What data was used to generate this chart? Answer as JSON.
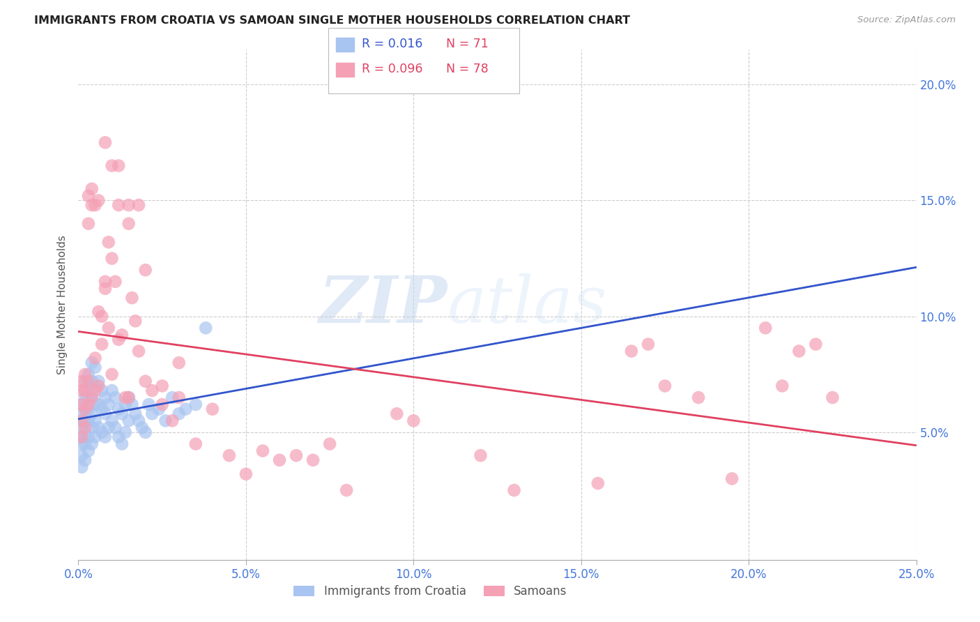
{
  "title": "IMMIGRANTS FROM CROATIA VS SAMOAN SINGLE MOTHER HOUSEHOLDS CORRELATION CHART",
  "source": "Source: ZipAtlas.com",
  "ylabel": "Single Mother Households",
  "xlim": [
    0.0,
    0.25
  ],
  "ylim": [
    -0.005,
    0.215
  ],
  "xtick_labels": [
    "0.0%",
    "5.0%",
    "10.0%",
    "15.0%",
    "20.0%",
    "25.0%"
  ],
  "xtick_values": [
    0.0,
    0.05,
    0.1,
    0.15,
    0.2,
    0.25
  ],
  "ytick_labels": [
    "5.0%",
    "10.0%",
    "15.0%",
    "20.0%"
  ],
  "ytick_values": [
    0.05,
    0.1,
    0.15,
    0.2
  ],
  "legend_r1": "R = 0.016",
  "legend_n1": "N = 71",
  "legend_r2": "R = 0.096",
  "legend_n2": "N = 78",
  "color_croatia": "#a8c4f0",
  "color_samoan": "#f5a0b5",
  "color_croatia_line": "#3355cc",
  "color_samoan_line": "#e04060",
  "color_axis_labels": "#4477dd",
  "watermark_zip": "ZIP",
  "watermark_atlas": "atlas",
  "legend_label1": "Immigrants from Croatia",
  "legend_label2": "Samoans",
  "croatia_x": [
    0.001,
    0.001,
    0.001,
    0.001,
    0.001,
    0.001,
    0.001,
    0.001,
    0.002,
    0.002,
    0.002,
    0.002,
    0.002,
    0.002,
    0.002,
    0.002,
    0.003,
    0.003,
    0.003,
    0.003,
    0.003,
    0.003,
    0.003,
    0.004,
    0.004,
    0.004,
    0.004,
    0.004,
    0.004,
    0.005,
    0.005,
    0.005,
    0.005,
    0.005,
    0.006,
    0.006,
    0.006,
    0.007,
    0.007,
    0.007,
    0.008,
    0.008,
    0.008,
    0.009,
    0.009,
    0.01,
    0.01,
    0.011,
    0.011,
    0.012,
    0.012,
    0.013,
    0.013,
    0.014,
    0.014,
    0.015,
    0.015,
    0.016,
    0.017,
    0.018,
    0.019,
    0.02,
    0.021,
    0.022,
    0.024,
    0.026,
    0.028,
    0.03,
    0.032,
    0.035,
    0.038
  ],
  "croatia_y": [
    0.062,
    0.058,
    0.055,
    0.052,
    0.048,
    0.045,
    0.04,
    0.035,
    0.072,
    0.068,
    0.065,
    0.06,
    0.055,
    0.05,
    0.045,
    0.038,
    0.075,
    0.07,
    0.065,
    0.06,
    0.055,
    0.048,
    0.042,
    0.08,
    0.072,
    0.065,
    0.058,
    0.052,
    0.045,
    0.078,
    0.07,
    0.062,
    0.055,
    0.048,
    0.072,
    0.062,
    0.052,
    0.068,
    0.06,
    0.05,
    0.065,
    0.058,
    0.048,
    0.062,
    0.052,
    0.068,
    0.055,
    0.065,
    0.052,
    0.06,
    0.048,
    0.058,
    0.045,
    0.062,
    0.05,
    0.065,
    0.055,
    0.062,
    0.058,
    0.055,
    0.052,
    0.05,
    0.062,
    0.058,
    0.06,
    0.055,
    0.065,
    0.058,
    0.06,
    0.062,
    0.095
  ],
  "samoan_x": [
    0.001,
    0.001,
    0.001,
    0.001,
    0.001,
    0.002,
    0.002,
    0.002,
    0.002,
    0.003,
    0.003,
    0.003,
    0.003,
    0.004,
    0.004,
    0.004,
    0.005,
    0.005,
    0.005,
    0.006,
    0.006,
    0.006,
    0.007,
    0.007,
    0.008,
    0.008,
    0.009,
    0.009,
    0.01,
    0.01,
    0.011,
    0.012,
    0.012,
    0.013,
    0.014,
    0.015,
    0.015,
    0.016,
    0.017,
    0.018,
    0.02,
    0.022,
    0.025,
    0.028,
    0.03,
    0.035,
    0.04,
    0.045,
    0.05,
    0.055,
    0.06,
    0.065,
    0.07,
    0.075,
    0.08,
    0.095,
    0.1,
    0.12,
    0.13,
    0.155,
    0.165,
    0.17,
    0.175,
    0.185,
    0.195,
    0.205,
    0.21,
    0.215,
    0.22,
    0.225,
    0.008,
    0.01,
    0.012,
    0.015,
    0.018,
    0.02,
    0.025,
    0.03
  ],
  "samoan_y": [
    0.068,
    0.072,
    0.062,
    0.055,
    0.048,
    0.075,
    0.068,
    0.06,
    0.052,
    0.14,
    0.152,
    0.072,
    0.062,
    0.148,
    0.155,
    0.065,
    0.082,
    0.148,
    0.068,
    0.15,
    0.102,
    0.07,
    0.1,
    0.088,
    0.115,
    0.112,
    0.132,
    0.095,
    0.125,
    0.075,
    0.115,
    0.148,
    0.09,
    0.092,
    0.065,
    0.148,
    0.065,
    0.108,
    0.098,
    0.085,
    0.072,
    0.068,
    0.062,
    0.055,
    0.065,
    0.045,
    0.06,
    0.04,
    0.032,
    0.042,
    0.038,
    0.04,
    0.038,
    0.045,
    0.025,
    0.058,
    0.055,
    0.04,
    0.025,
    0.028,
    0.085,
    0.088,
    0.07,
    0.065,
    0.03,
    0.095,
    0.07,
    0.085,
    0.088,
    0.065,
    0.175,
    0.165,
    0.165,
    0.14,
    0.148,
    0.12,
    0.07,
    0.08
  ]
}
